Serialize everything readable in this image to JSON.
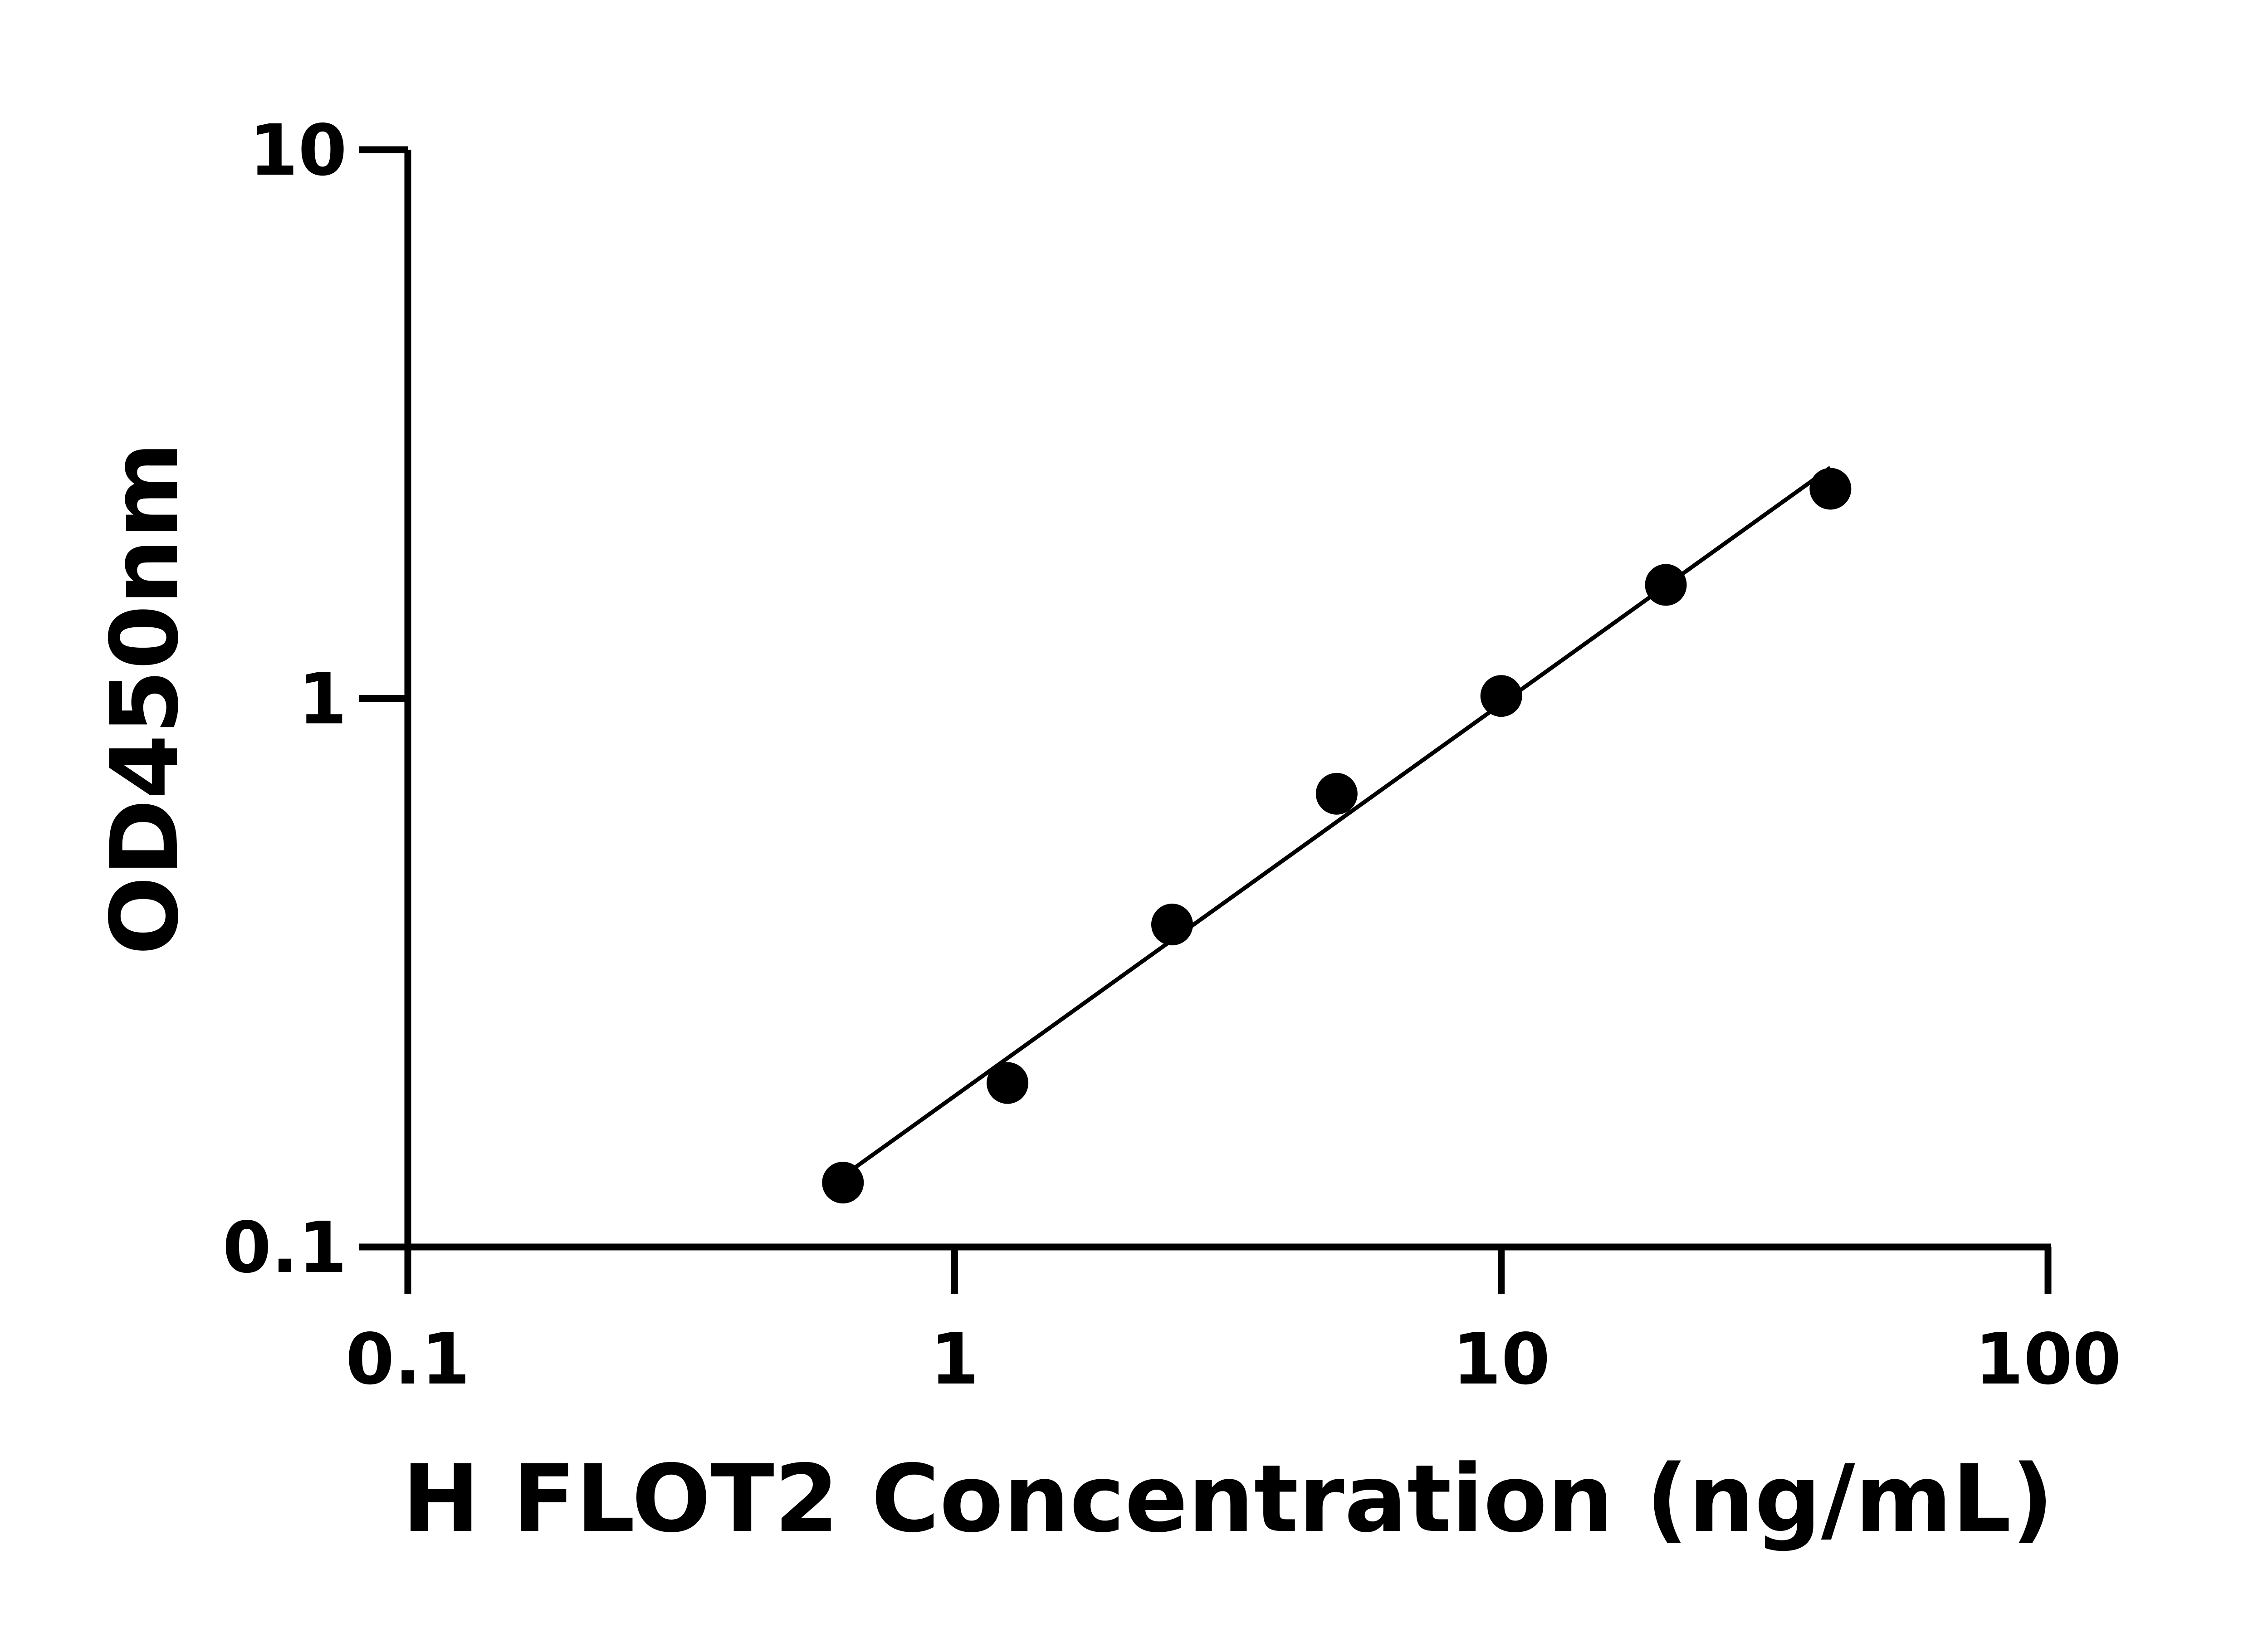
{
  "chart_data": {
    "type": "scatter",
    "title": "",
    "xlabel": "H FLOT2 Concentration (ng/mL)",
    "ylabel": "OD450nm",
    "xscale": "log",
    "yscale": "log",
    "xlim": [
      0.1,
      100
    ],
    "ylim": [
      0.1,
      10
    ],
    "xticks": [
      "0.1",
      "1",
      "10",
      "100"
    ],
    "yticks": [
      "0.1",
      "1",
      "10"
    ],
    "grid": false,
    "legend": "none",
    "fit_line": true,
    "color": "#000000",
    "x": [
      0.625,
      1.25,
      2.5,
      5,
      10,
      20,
      40
    ],
    "y": [
      0.131,
      0.199,
      0.387,
      0.67,
      1.01,
      1.61,
      2.41
    ]
  }
}
